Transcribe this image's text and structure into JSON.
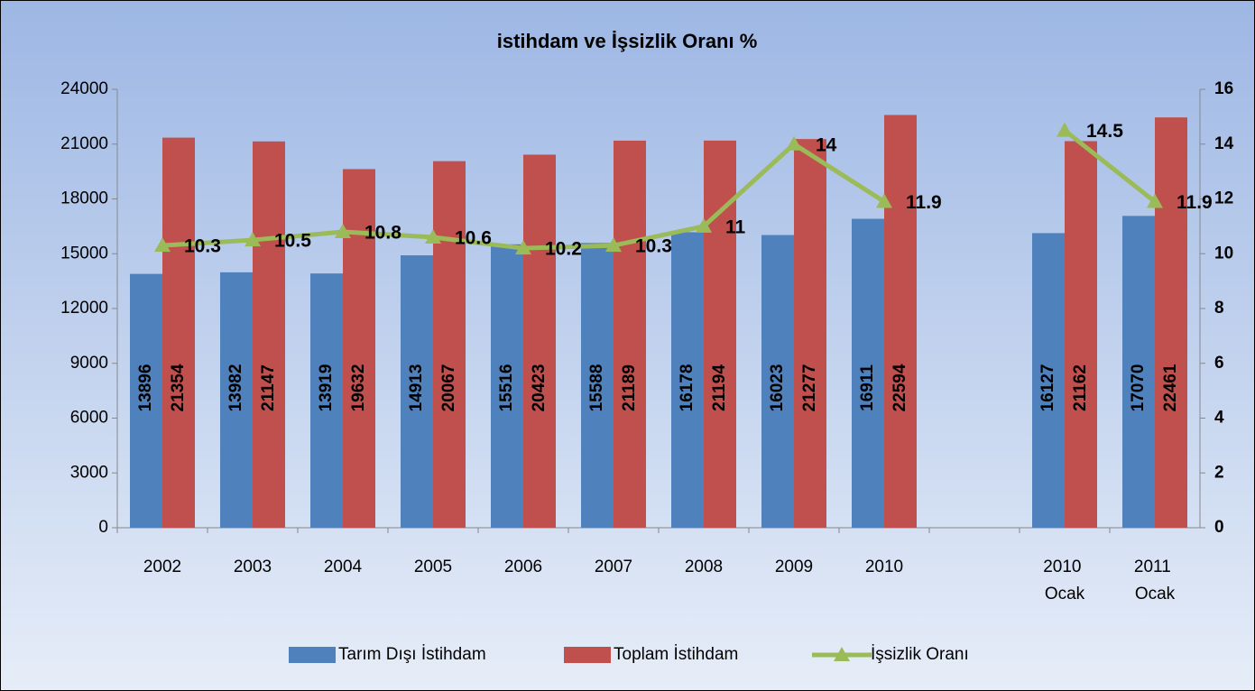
{
  "chart_data": {
    "type": "bar_line",
    "title": "istihdam ve İşsizlik Oranı %",
    "categories": [
      "2002",
      "2003",
      "2004",
      "2005",
      "2006",
      "2007",
      "2008",
      "2009",
      "2010",
      null,
      "2010 Ocak",
      "2011 Ocak"
    ],
    "series": [
      {
        "name": "Tarım Dışı İstihdam",
        "type": "bar",
        "color": "#4f81bd",
        "values": [
          13896,
          13982,
          13919,
          14913,
          15516,
          15588,
          16178,
          16023,
          16911,
          null,
          16127,
          17070
        ]
      },
      {
        "name": "Toplam İstihdam",
        "type": "bar",
        "color": "#c0504d",
        "values": [
          21354,
          21147,
          19632,
          20067,
          20423,
          21189,
          21194,
          21277,
          22594,
          null,
          21162,
          22461
        ]
      },
      {
        "name": "İşsizlik Oranı",
        "type": "line",
        "axis": "y2",
        "color": "#9bbb59",
        "values": [
          10.3,
          10.5,
          10.8,
          10.6,
          10.2,
          10.3,
          11,
          14,
          11.9,
          null,
          14.5,
          11.9
        ]
      }
    ],
    "ylim": [
      0,
      24000
    ],
    "yticks": [
      0,
      3000,
      6000,
      9000,
      12000,
      15000,
      18000,
      21000,
      24000
    ],
    "y2lim": [
      0,
      16
    ],
    "y2ticks": [
      0,
      2,
      4,
      6,
      8,
      10,
      12,
      14,
      16
    ],
    "legend": "bottom"
  }
}
